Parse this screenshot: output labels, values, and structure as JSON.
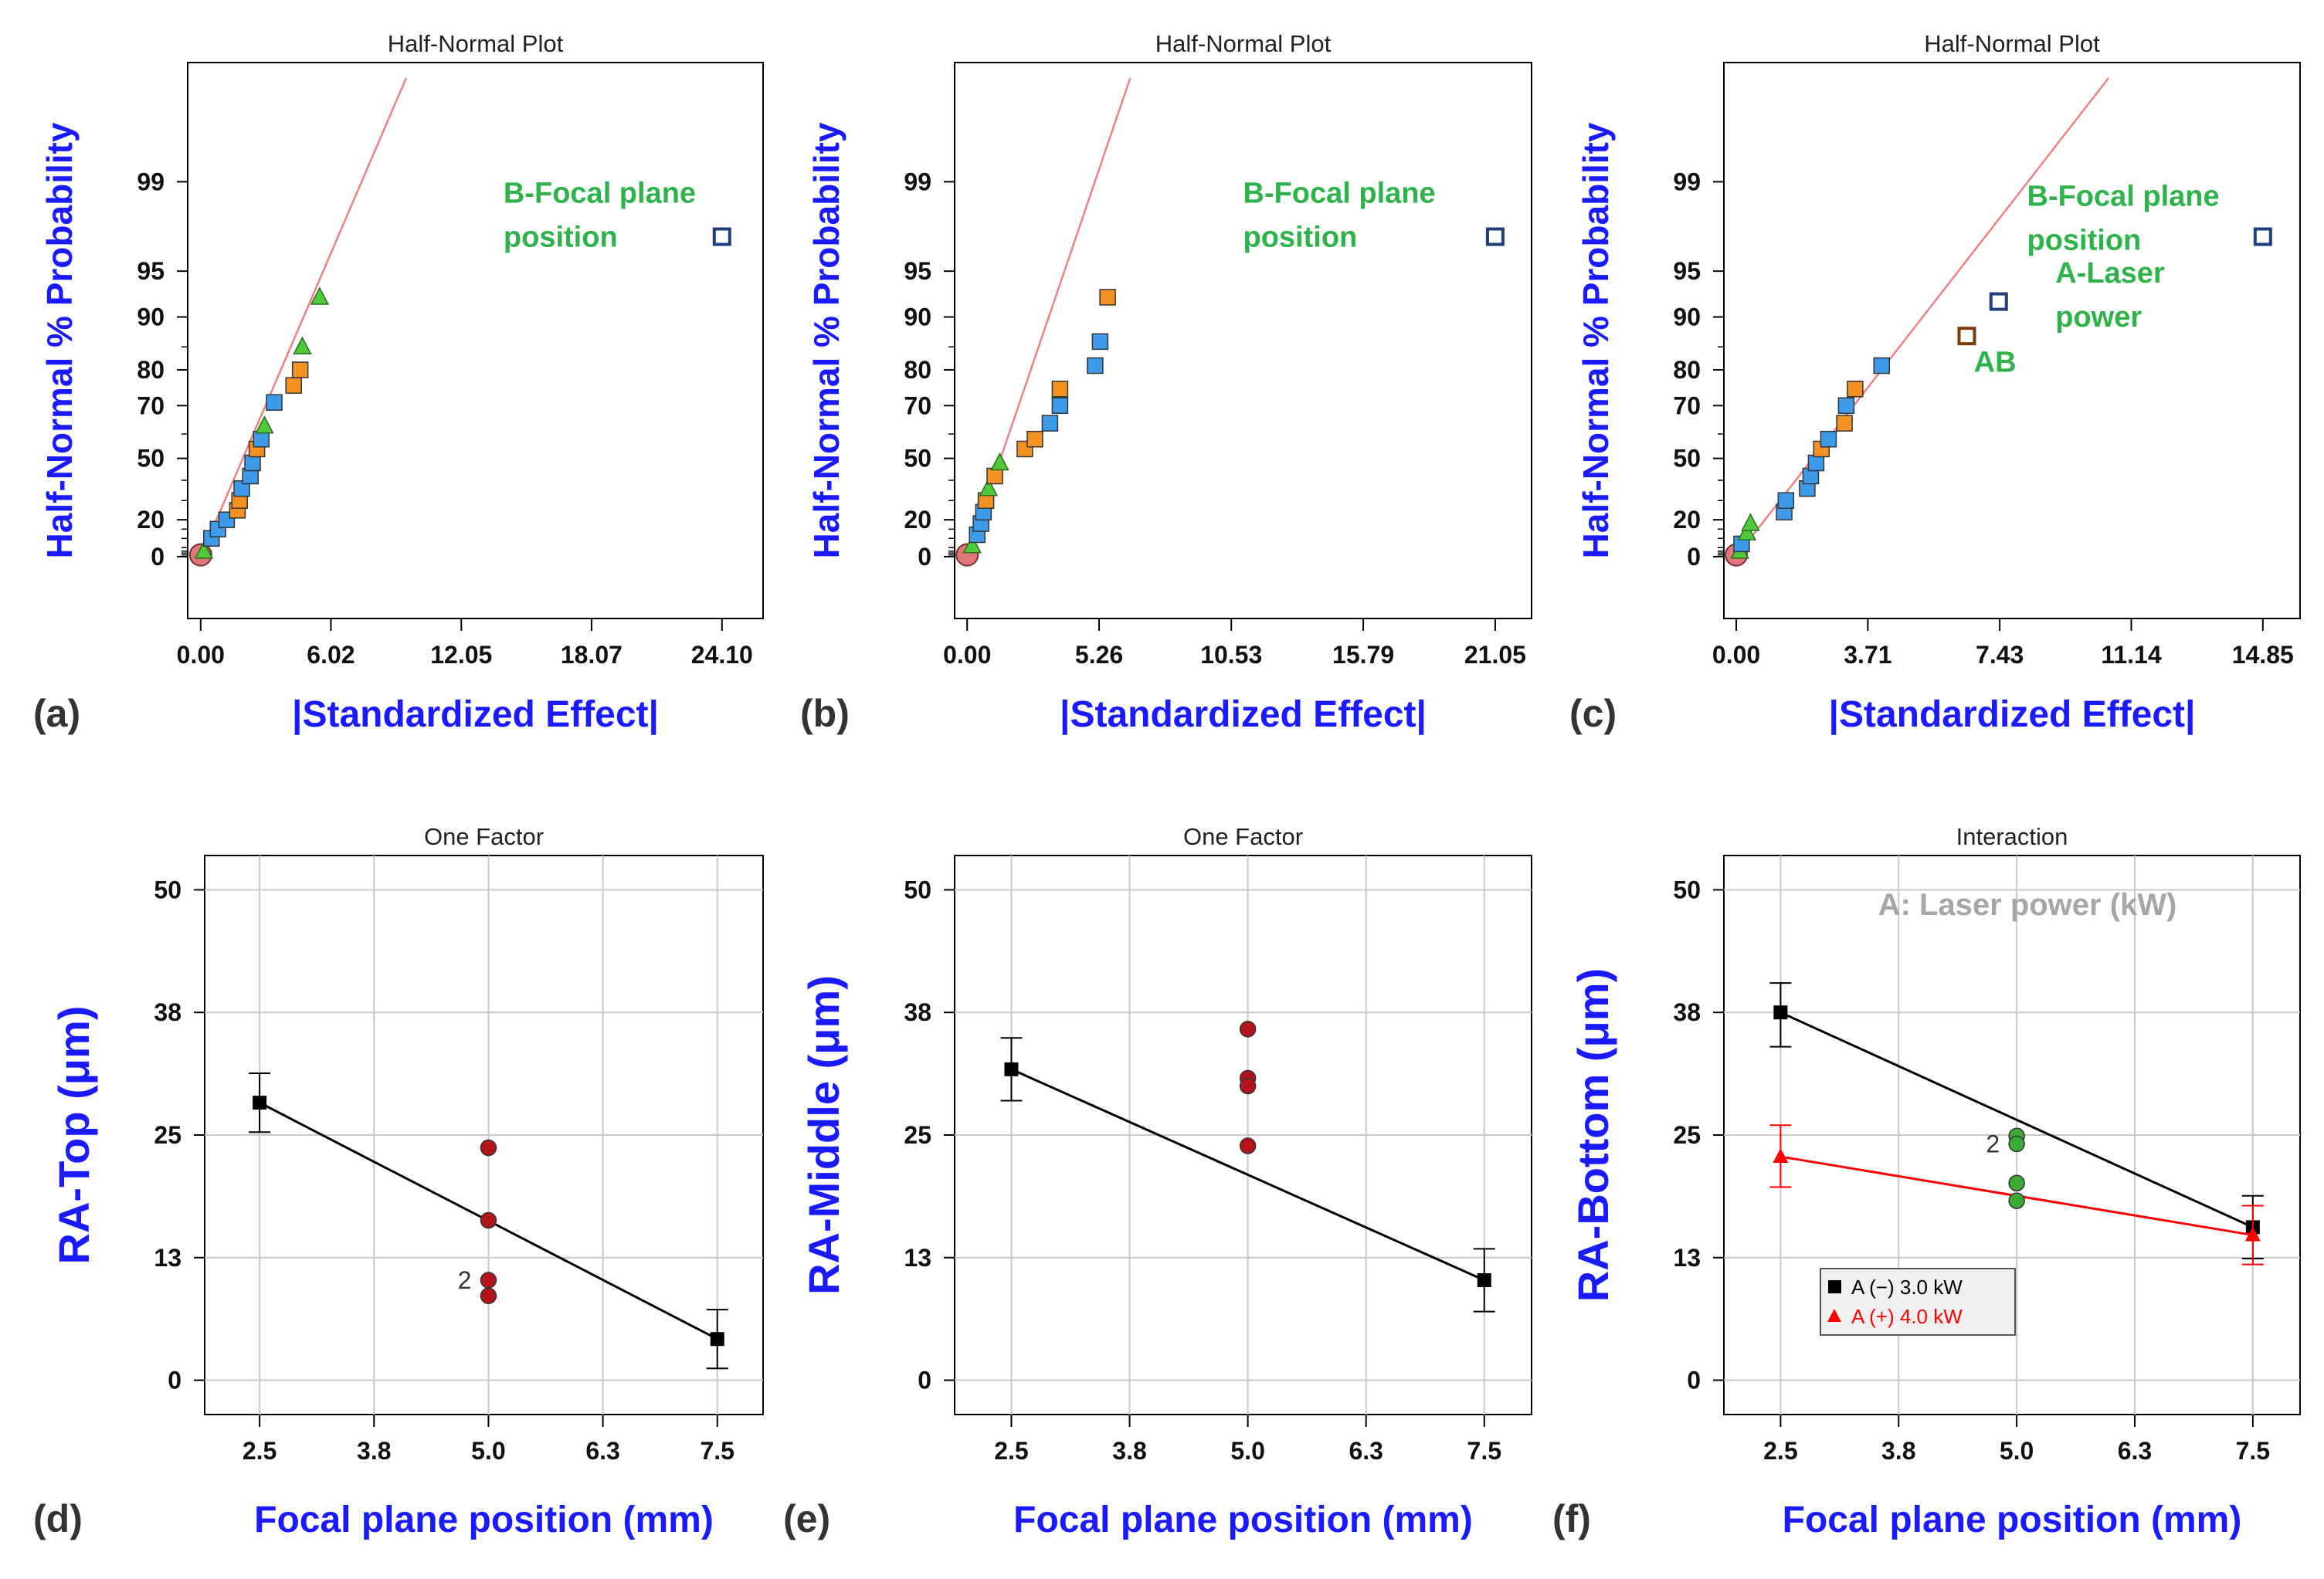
{
  "colors": {
    "axis_label": "#1a1aff",
    "annotation": "#2db34a",
    "fit_line_halfnormal": "#f28080",
    "marker_blue": "#3d9be9",
    "marker_orange": "#f39222",
    "marker_green": "#4fc93a",
    "marker_base": "#e0787a",
    "marker_outline_square": "#1f3f7a",
    "marker_outline_orange": "#7a3b10",
    "dot_red": "#b3141b",
    "dot_green": "#3aaa35",
    "series_black": "#000000",
    "series_red": "#ff0000",
    "factor_label": "#a6a6a6"
  },
  "chart_data": [
    {
      "panel_label": "(a)",
      "type": "scatter",
      "title": "Half-Normal Plot",
      "xlabel": "|Standardized Effect|",
      "ylabel": "Half-Normal % Probability",
      "xlim": [
        -0.6,
        26.0
      ],
      "x_ticks": [
        "0.00",
        "6.02",
        "12.05",
        "18.07",
        "24.10"
      ],
      "x_tick_values": [
        0.0,
        6.02,
        12.05,
        18.07,
        24.1
      ],
      "y_ticks": [
        "0",
        "20",
        "50",
        "70",
        "80",
        "90",
        "95",
        "99"
      ],
      "y_tick_values": [
        0,
        20,
        50,
        70,
        80,
        90,
        95,
        99
      ],
      "fit_line": [
        [
          0.0,
          0
        ],
        [
          9.5,
          99.9
        ]
      ],
      "points": [
        {
          "x": 0.0,
          "p": 1,
          "shape": "circle",
          "color": "base"
        },
        {
          "x": 0.15,
          "p": 3,
          "shape": "triangle",
          "color": "green"
        },
        {
          "x": 0.5,
          "p": 10,
          "shape": "square",
          "color": "blue"
        },
        {
          "x": 0.8,
          "p": 15,
          "shape": "square",
          "color": "blue"
        },
        {
          "x": 1.2,
          "p": 20,
          "shape": "square",
          "color": "blue"
        },
        {
          "x": 1.7,
          "p": 25,
          "shape": "square",
          "color": "orange"
        },
        {
          "x": 1.8,
          "p": 30,
          "shape": "square",
          "color": "orange"
        },
        {
          "x": 1.9,
          "p": 36,
          "shape": "square",
          "color": "blue"
        },
        {
          "x": 2.3,
          "p": 42,
          "shape": "square",
          "color": "blue"
        },
        {
          "x": 2.4,
          "p": 48,
          "shape": "square",
          "color": "blue"
        },
        {
          "x": 2.6,
          "p": 54,
          "shape": "square",
          "color": "orange"
        },
        {
          "x": 2.8,
          "p": 58,
          "shape": "square",
          "color": "blue"
        },
        {
          "x": 2.95,
          "p": 63,
          "shape": "triangle",
          "color": "green"
        },
        {
          "x": 3.4,
          "p": 71,
          "shape": "square",
          "color": "blue"
        },
        {
          "x": 4.3,
          "p": 76,
          "shape": "square",
          "color": "orange"
        },
        {
          "x": 4.6,
          "p": 80,
          "shape": "square",
          "color": "orange"
        },
        {
          "x": 4.7,
          "p": 85,
          "shape": "triangle",
          "color": "green"
        },
        {
          "x": 5.5,
          "p": 92.5,
          "shape": "triangle",
          "color": "green"
        },
        {
          "x": 24.1,
          "p": 97.2,
          "shape": "square",
          "color": "white"
        }
      ],
      "annotations": [
        {
          "text": "B-Focal plane\nposition",
          "x": 14.0,
          "p": 98.5
        }
      ]
    },
    {
      "panel_label": "(b)",
      "type": "scatter",
      "title": "Half-Normal Plot",
      "xlabel": "|Standardized Effect|",
      "ylabel": "Half-Normal % Probability",
      "xlim": [
        -0.5,
        22.5
      ],
      "x_ticks": [
        "0.00",
        "5.26",
        "10.53",
        "15.79",
        "21.05"
      ],
      "x_tick_values": [
        0.0,
        5.26,
        10.53,
        15.79,
        21.05
      ],
      "y_ticks": [
        "0",
        "20",
        "50",
        "70",
        "80",
        "90",
        "95",
        "99"
      ],
      "y_tick_values": [
        0,
        20,
        50,
        70,
        80,
        90,
        95,
        99
      ],
      "fit_line": [
        [
          0.0,
          0
        ],
        [
          6.5,
          99.9
        ]
      ],
      "points": [
        {
          "x": 0.0,
          "p": 1,
          "shape": "circle",
          "color": "base"
        },
        {
          "x": 0.2,
          "p": 6,
          "shape": "triangle",
          "color": "green"
        },
        {
          "x": 0.4,
          "p": 12,
          "shape": "square",
          "color": "blue"
        },
        {
          "x": 0.55,
          "p": 18,
          "shape": "square",
          "color": "blue"
        },
        {
          "x": 0.65,
          "p": 24,
          "shape": "square",
          "color": "blue"
        },
        {
          "x": 0.75,
          "p": 30,
          "shape": "square",
          "color": "orange"
        },
        {
          "x": 0.85,
          "p": 36,
          "shape": "triangle",
          "color": "green"
        },
        {
          "x": 1.1,
          "p": 42,
          "shape": "square",
          "color": "orange"
        },
        {
          "x": 1.3,
          "p": 48,
          "shape": "triangle",
          "color": "green"
        },
        {
          "x": 2.3,
          "p": 54,
          "shape": "square",
          "color": "orange"
        },
        {
          "x": 2.7,
          "p": 58,
          "shape": "square",
          "color": "orange"
        },
        {
          "x": 3.3,
          "p": 64,
          "shape": "square",
          "color": "blue"
        },
        {
          "x": 3.7,
          "p": 70,
          "shape": "square",
          "color": "blue"
        },
        {
          "x": 3.7,
          "p": 75,
          "shape": "square",
          "color": "orange"
        },
        {
          "x": 5.1,
          "p": 81,
          "shape": "square",
          "color": "blue"
        },
        {
          "x": 5.3,
          "p": 86,
          "shape": "square",
          "color": "blue"
        },
        {
          "x": 5.6,
          "p": 92.5,
          "shape": "square",
          "color": "orange"
        },
        {
          "x": 21.05,
          "p": 97.2,
          "shape": "square",
          "color": "white"
        }
      ],
      "annotations": [
        {
          "text": "B-Focal plane\nposition",
          "x": 11.0,
          "p": 98.5
        }
      ]
    },
    {
      "panel_label": "(c)",
      "type": "scatter",
      "title": "Half-Normal Plot",
      "xlabel": "|Standardized Effect|",
      "ylabel": "Half-Normal % Probability",
      "xlim": [
        -0.35,
        15.9
      ],
      "x_ticks": [
        "0.00",
        "3.71",
        "7.43",
        "11.14",
        "14.85"
      ],
      "x_tick_values": [
        0.0,
        3.71,
        7.43,
        11.14,
        14.85
      ],
      "y_ticks": [
        "0",
        "20",
        "50",
        "70",
        "80",
        "90",
        "95",
        "99"
      ],
      "y_tick_values": [
        0,
        20,
        50,
        70,
        80,
        90,
        95,
        99
      ],
      "fit_line": [
        [
          0.0,
          0
        ],
        [
          10.5,
          99.9
        ]
      ],
      "points": [
        {
          "x": 0.0,
          "p": 1,
          "shape": "circle",
          "color": "base"
        },
        {
          "x": 0.1,
          "p": 3,
          "shape": "triangle",
          "color": "green"
        },
        {
          "x": 0.15,
          "p": 7,
          "shape": "square",
          "color": "blue"
        },
        {
          "x": 0.3,
          "p": 13,
          "shape": "triangle",
          "color": "green"
        },
        {
          "x": 0.4,
          "p": 18,
          "shape": "triangle",
          "color": "green"
        },
        {
          "x": 1.35,
          "p": 24,
          "shape": "square",
          "color": "blue"
        },
        {
          "x": 1.4,
          "p": 30,
          "shape": "square",
          "color": "blue"
        },
        {
          "x": 2.0,
          "p": 36,
          "shape": "square",
          "color": "blue"
        },
        {
          "x": 2.1,
          "p": 42,
          "shape": "square",
          "color": "blue"
        },
        {
          "x": 2.25,
          "p": 48,
          "shape": "square",
          "color": "blue"
        },
        {
          "x": 2.4,
          "p": 54,
          "shape": "square",
          "color": "orange"
        },
        {
          "x": 2.6,
          "p": 58,
          "shape": "square",
          "color": "blue"
        },
        {
          "x": 3.05,
          "p": 64,
          "shape": "square",
          "color": "orange"
        },
        {
          "x": 3.1,
          "p": 70,
          "shape": "square",
          "color": "blue"
        },
        {
          "x": 3.35,
          "p": 75,
          "shape": "square",
          "color": "orange"
        },
        {
          "x": 4.1,
          "p": 81,
          "shape": "square",
          "color": "blue"
        },
        {
          "x": 6.5,
          "p": 87,
          "shape": "square",
          "color": "white_orange"
        },
        {
          "x": 7.4,
          "p": 92,
          "shape": "square",
          "color": "white"
        },
        {
          "x": 14.85,
          "p": 97.2,
          "shape": "square",
          "color": "white"
        }
      ],
      "annotations": [
        {
          "text": "B-Focal plane\nposition",
          "x": 8.2,
          "p": 98.4
        },
        {
          "text": "A-Laser\npower",
          "x": 9.0,
          "p": 94.0
        },
        {
          "text": "AB",
          "x": 6.7,
          "p": 79.5
        }
      ]
    },
    {
      "panel_label": "(d)",
      "type": "line",
      "title": "One Factor",
      "xlabel": "Focal plane position (mm)",
      "ylabel": "RA-Top (μm)",
      "xlim": [
        1.9,
        8.0
      ],
      "ylim": [
        -3.5,
        53.5
      ],
      "x_ticks": [
        "2.5",
        "3.8",
        "5.0",
        "6.3",
        "7.5"
      ],
      "x_tick_values": [
        2.5,
        3.75,
        5.0,
        6.25,
        7.5
      ],
      "y_ticks": [
        "0",
        "13",
        "25",
        "38",
        "50"
      ],
      "y_tick_values": [
        0,
        12.5,
        25,
        37.5,
        50
      ],
      "series": [
        {
          "color": "black",
          "marker": "square",
          "x": [
            2.5,
            7.5
          ],
          "values": [
            28.3,
            4.2
          ],
          "err_low": [
            25.3,
            1.2
          ],
          "err_high": [
            31.3,
            7.2
          ]
        }
      ],
      "design_points": [
        {
          "x": 5.0,
          "y": 23.7,
          "color": "red"
        },
        {
          "x": 5.0,
          "y": 16.3,
          "color": "red"
        },
        {
          "x": 5.0,
          "y": 10.2,
          "color": "red",
          "count": "2"
        },
        {
          "x": 5.0,
          "y": 8.6,
          "color": "red"
        }
      ],
      "series_labels": []
    },
    {
      "panel_label": "(e)",
      "type": "line",
      "title": "One Factor",
      "xlabel": "Focal plane position (mm)",
      "ylabel": "RA-Middle (μm)",
      "xlim": [
        1.9,
        8.0
      ],
      "ylim": [
        -3.5,
        53.5
      ],
      "x_ticks": [
        "2.5",
        "3.8",
        "5.0",
        "6.3",
        "7.5"
      ],
      "x_tick_values": [
        2.5,
        3.75,
        5.0,
        6.25,
        7.5
      ],
      "y_ticks": [
        "0",
        "13",
        "25",
        "38",
        "50"
      ],
      "y_tick_values": [
        0,
        12.5,
        25,
        37.5,
        50
      ],
      "series": [
        {
          "color": "black",
          "marker": "square",
          "x": [
            2.5,
            7.5
          ],
          "values": [
            31.7,
            10.2
          ],
          "err_low": [
            28.5,
            7.0
          ],
          "err_high": [
            34.9,
            13.4
          ]
        }
      ],
      "design_points": [
        {
          "x": 5.0,
          "y": 35.8,
          "color": "red"
        },
        {
          "x": 5.0,
          "y": 30.8,
          "color": "red"
        },
        {
          "x": 5.0,
          "y": 30.0,
          "color": "red"
        },
        {
          "x": 5.0,
          "y": 23.9,
          "color": "red"
        }
      ]
    },
    {
      "panel_label": "(f)",
      "type": "line",
      "title": "Interaction",
      "xlabel": "Focal plane position (mm)",
      "ylabel": "RA-Bottom (μm)",
      "factor_label": "A: Laser power (kW)",
      "xlim": [
        1.9,
        8.0
      ],
      "ylim": [
        -3.5,
        53.5
      ],
      "x_ticks": [
        "2.5",
        "3.8",
        "5.0",
        "6.3",
        "7.5"
      ],
      "x_tick_values": [
        2.5,
        3.75,
        5.0,
        6.25,
        7.5
      ],
      "y_ticks": [
        "0",
        "13",
        "25",
        "38",
        "50"
      ],
      "y_tick_values": [
        0,
        12.5,
        25,
        37.5,
        50
      ],
      "series": [
        {
          "name": "A (−) 3.0 kW",
          "color": "black",
          "marker": "square",
          "x": [
            2.5,
            7.5
          ],
          "values": [
            37.5,
            15.6
          ],
          "err_low": [
            34.0,
            12.4
          ],
          "err_high": [
            40.5,
            18.8
          ]
        },
        {
          "name": "A (+) 4.0 kW",
          "color": "red",
          "marker": "triangle",
          "x": [
            2.5,
            7.5
          ],
          "values": [
            22.8,
            14.8
          ],
          "err_low": [
            19.7,
            11.8
          ],
          "err_high": [
            26.0,
            17.8
          ]
        }
      ],
      "design_points": [
        {
          "x": 5.0,
          "y": 24.9,
          "color": "green"
        },
        {
          "x": 5.0,
          "y": 24.1,
          "color": "green",
          "count": "2"
        },
        {
          "x": 5.0,
          "y": 20.1,
          "color": "green"
        },
        {
          "x": 5.0,
          "y": 18.3,
          "color": "green"
        }
      ]
    }
  ]
}
